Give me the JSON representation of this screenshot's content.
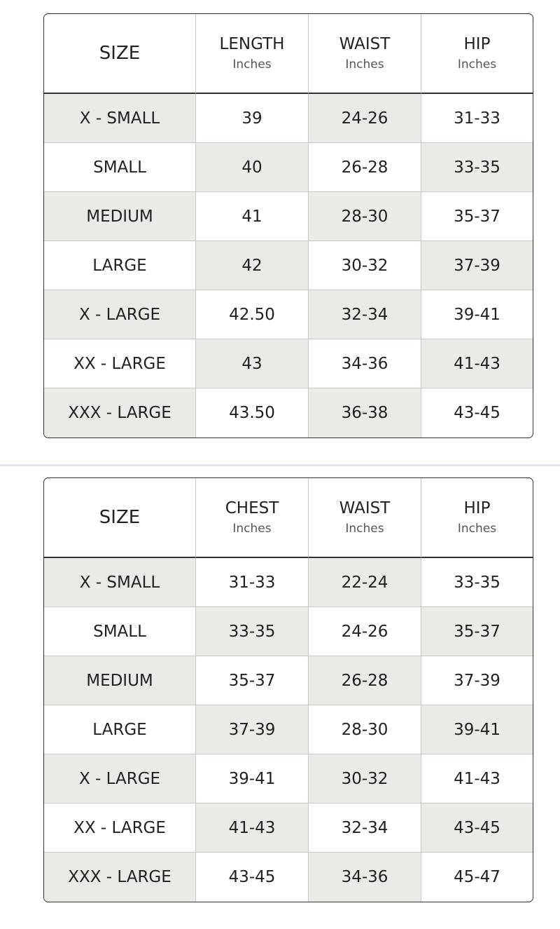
{
  "tables": [
    {
      "columns": [
        {
          "label": "SIZE"
        },
        {
          "label": "LENGTH",
          "unit": "Inches"
        },
        {
          "label": "WAIST",
          "unit": "Inches"
        },
        {
          "label": "HIP",
          "unit": "Inches"
        }
      ],
      "rows": [
        [
          "X - SMALL",
          "39",
          "24-26",
          "31-33"
        ],
        [
          "SMALL",
          "40",
          "26-28",
          "33-35"
        ],
        [
          "MEDIUM",
          "41",
          "28-30",
          "35-37"
        ],
        [
          "LARGE",
          "42",
          "30-32",
          "37-39"
        ],
        [
          "X - LARGE",
          "42.50",
          "32-34",
          "39-41"
        ],
        [
          "XX - LARGE",
          "43",
          "34-36",
          "41-43"
        ],
        [
          "XXX - LARGE",
          "43.50",
          "36-38",
          "43-45"
        ]
      ]
    },
    {
      "columns": [
        {
          "label": "SIZE"
        },
        {
          "label": "CHEST",
          "unit": "Inches"
        },
        {
          "label": "WAIST",
          "unit": "Inches"
        },
        {
          "label": "HIP",
          "unit": "Inches"
        }
      ],
      "rows": [
        [
          "X - SMALL",
          "31-33",
          "22-24",
          "33-35"
        ],
        [
          "SMALL",
          "33-35",
          "24-26",
          "35-37"
        ],
        [
          "MEDIUM",
          "35-37",
          "26-28",
          "37-39"
        ],
        [
          "LARGE",
          "37-39",
          "28-30",
          "39-41"
        ],
        [
          "X - LARGE",
          "39-41",
          "30-32",
          "41-43"
        ],
        [
          "XX - LARGE",
          "41-43",
          "32-34",
          "43-45"
        ],
        [
          "XXX - LARGE",
          "43-45",
          "34-36",
          "45-47"
        ]
      ]
    }
  ]
}
